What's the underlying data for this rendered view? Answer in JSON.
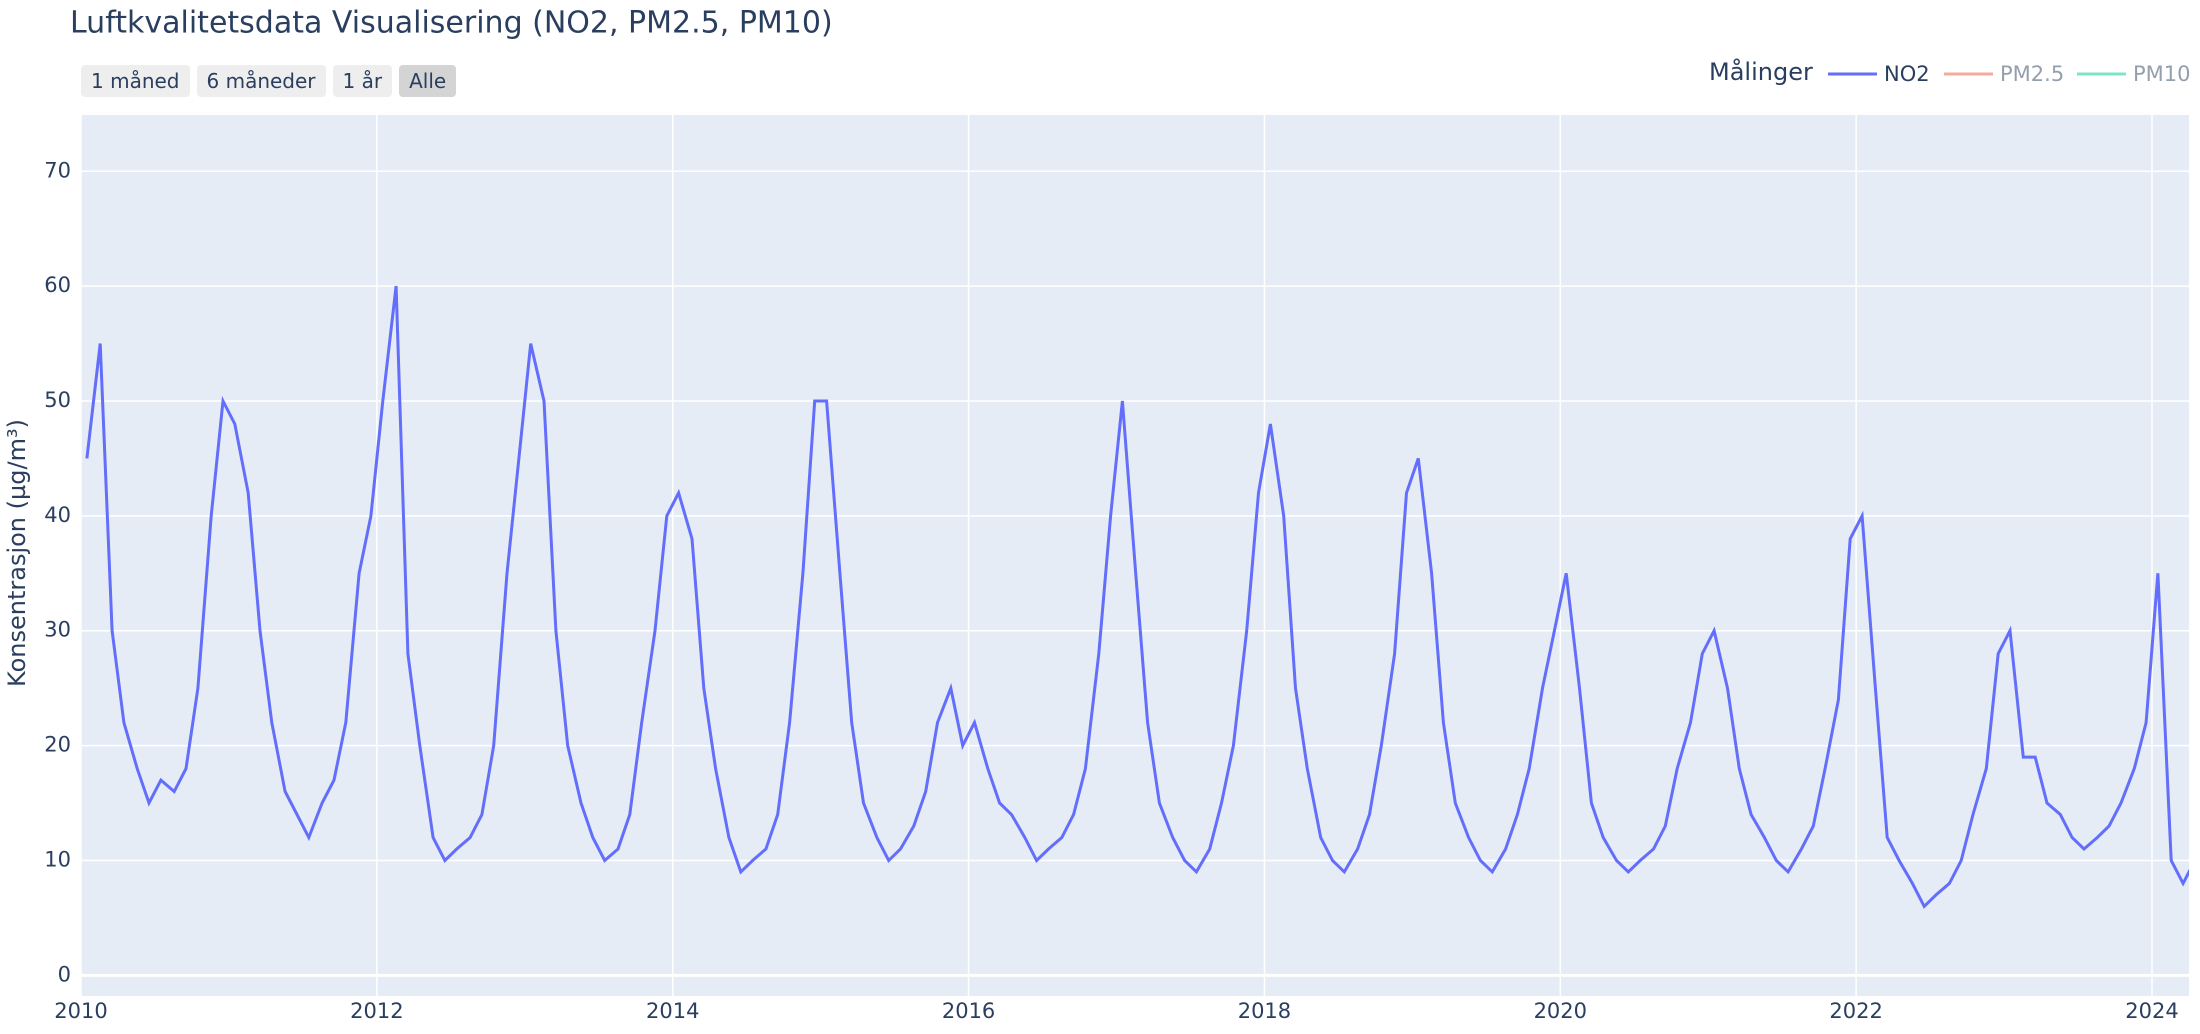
{
  "chart_data": {
    "type": "line",
    "title": "Luftkvalitetsdata Visualisering (NO2, PM2.5, PM10)",
    "y_label": "Konsentrasjon (µg/m³)",
    "buttons": [
      "1 måned",
      "6 måneder",
      "1 år",
      "Alle"
    ],
    "active_button": 3,
    "legend_title": "Målinger",
    "x": [
      2010.04,
      2010.13,
      2010.21,
      2010.29,
      2010.38,
      2010.46,
      2010.54,
      2010.63,
      2010.71,
      2010.79,
      2010.88,
      2010.96,
      2011.04,
      2011.13,
      2011.21,
      2011.29,
      2011.38,
      2011.46,
      2011.54,
      2011.63,
      2011.71,
      2011.79,
      2011.88,
      2011.96,
      2012.04,
      2012.13,
      2012.21,
      2012.29,
      2012.38,
      2012.46,
      2012.54,
      2012.63,
      2012.71,
      2012.79,
      2012.88,
      2012.96,
      2013.04,
      2013.13,
      2013.21,
      2013.29,
      2013.38,
      2013.46,
      2013.54,
      2013.63,
      2013.71,
      2013.79,
      2013.88,
      2013.96,
      2014.04,
      2014.13,
      2014.21,
      2014.29,
      2014.38,
      2014.46,
      2014.54,
      2014.63,
      2014.71,
      2014.79,
      2014.88,
      2014.96,
      2015.04,
      2015.13,
      2015.21,
      2015.29,
      2015.38,
      2015.46,
      2015.54,
      2015.63,
      2015.71,
      2015.79,
      2015.88,
      2015.96,
      2016.04,
      2016.13,
      2016.21,
      2016.29,
      2016.38,
      2016.46,
      2016.54,
      2016.63,
      2016.71,
      2016.79,
      2016.88,
      2016.96,
      2017.04,
      2017.13,
      2017.21,
      2017.29,
      2017.38,
      2017.46,
      2017.54,
      2017.63,
      2017.71,
      2017.79,
      2017.88,
      2017.96,
      2018.04,
      2018.13,
      2018.21,
      2018.29,
      2018.38,
      2018.46,
      2018.54,
      2018.63,
      2018.71,
      2018.79,
      2018.88,
      2018.96,
      2019.04,
      2019.13,
      2019.21,
      2019.29,
      2019.38,
      2019.46,
      2019.54,
      2019.63,
      2019.71,
      2019.79,
      2019.88,
      2019.96,
      2020.04,
      2020.13,
      2020.21,
      2020.29,
      2020.38,
      2020.46,
      2020.54,
      2020.63,
      2020.71,
      2020.79,
      2020.88,
      2020.96,
      2021.04,
      2021.13,
      2021.21,
      2021.29,
      2021.38,
      2021.46,
      2021.54,
      2021.63,
      2021.71,
      2021.79,
      2021.88,
      2021.96,
      2022.04,
      2022.13,
      2022.21,
      2022.29,
      2022.38,
      2022.46,
      2022.54,
      2022.63,
      2022.71,
      2022.79,
      2022.88,
      2022.96,
      2023.04,
      2023.13,
      2023.21,
      2023.29,
      2023.38,
      2023.46,
      2023.54,
      2023.63,
      2023.71,
      2023.79,
      2023.88,
      2023.96,
      2024.04,
      2024.13,
      2024.21,
      2024.29
    ],
    "series": [
      {
        "name": "NO2",
        "color": "#636efa",
        "visible": true,
        "values": [
          45,
          55,
          30,
          22,
          18,
          15,
          17,
          16,
          18,
          25,
          40,
          50,
          48,
          42,
          30,
          22,
          16,
          14,
          12,
          15,
          17,
          22,
          35,
          40,
          50,
          60,
          28,
          20,
          12,
          10,
          11,
          12,
          14,
          20,
          35,
          45,
          55,
          50,
          30,
          20,
          15,
          12,
          10,
          11,
          14,
          22,
          30,
          40,
          42,
          38,
          25,
          18,
          12,
          9,
          10,
          11,
          14,
          22,
          35,
          50,
          50,
          35,
          22,
          15,
          12,
          10,
          11,
          13,
          16,
          22,
          25,
          20,
          22,
          18,
          15,
          14,
          12,
          10,
          11,
          12,
          14,
          18,
          28,
          40,
          50,
          35,
          22,
          15,
          12,
          10,
          9,
          11,
          15,
          20,
          30,
          42,
          48,
          40,
          25,
          18,
          12,
          10,
          9,
          11,
          14,
          20,
          28,
          42,
          45,
          35,
          22,
          15,
          12,
          10,
          9,
          11,
          14,
          18,
          25,
          30,
          35,
          25,
          15,
          12,
          10,
          9,
          10,
          11,
          13,
          18,
          22,
          28,
          30,
          25,
          18,
          14,
          12,
          10,
          9,
          11,
          13,
          18,
          24,
          38,
          40,
          25,
          12,
          10,
          8,
          6,
          7,
          8,
          10,
          14,
          18,
          28,
          30,
          19,
          19,
          15,
          14,
          12,
          11,
          12,
          13,
          15,
          18,
          22,
          35,
          10,
          8,
          10
        ]
      },
      {
        "name": "PM2.5",
        "color": "#EF553B",
        "visible": false
      },
      {
        "name": "PM10",
        "color": "#00cc96",
        "visible": false
      }
    ],
    "xlim": [
      2010,
      2024.25
    ],
    "xticks": [
      2010,
      2012,
      2014,
      2016,
      2018,
      2020,
      2022,
      2024
    ],
    "ylim": [
      -1.8,
      74.9
    ],
    "yticks": [
      0,
      10,
      20,
      30,
      40,
      50,
      60,
      70
    ],
    "grid": true
  }
}
